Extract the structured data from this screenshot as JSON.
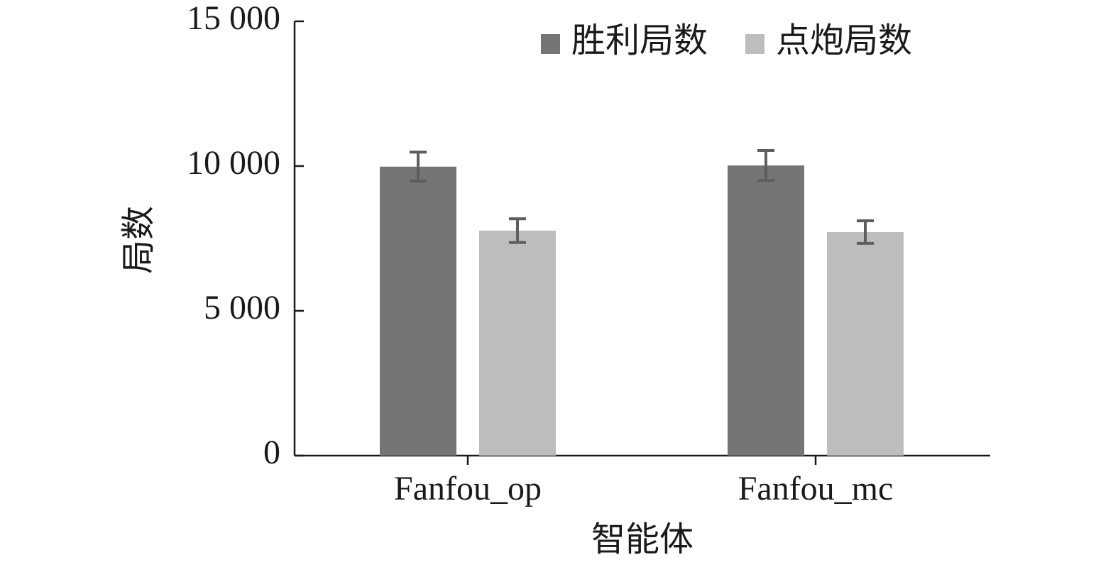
{
  "chart_data": {
    "type": "bar",
    "x_label": "智能体",
    "y_label": "局数",
    "categories": [
      "Fanfou_op",
      "Fanfou_mc"
    ],
    "series": [
      {
        "name": "胜利局数",
        "color": "#767475",
        "values": [
          9980,
          10020
        ],
        "errors": [
          500,
          520
        ]
      },
      {
        "name": "点炮局数",
        "color": "#bdbdbd",
        "values": [
          7770,
          7720
        ],
        "errors": [
          410,
          390
        ]
      }
    ],
    "ylim": [
      0,
      15000
    ],
    "yticks": [
      0,
      {
        "value": 5000,
        "label": "5 000"
      },
      {
        "value": 10000,
        "label": "10 000"
      },
      {
        "value": 15000,
        "label": "15 000"
      }
    ],
    "error_color": "#5e5e5e",
    "legend": "top-right"
  }
}
